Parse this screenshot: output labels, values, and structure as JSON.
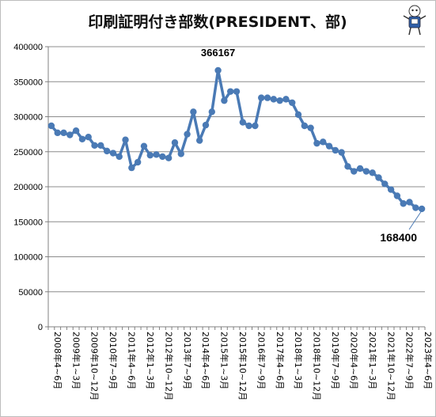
{
  "chart_data": {
    "type": "line",
    "title": "印刷証明付き部数(PRESIDENT、部)",
    "xlabel": "",
    "ylabel": "",
    "ylim": [
      0,
      400000
    ],
    "yticks": [
      0,
      50000,
      100000,
      150000,
      200000,
      250000,
      300000,
      350000,
      400000
    ],
    "grid": true,
    "legend": "none",
    "line_color": "#4a7ab5",
    "x_tick_labels": [
      "2008年4~6月",
      "2009年1~3月",
      "2009年10~12月",
      "2010年7~9月",
      "2011年4~6月",
      "2012年1~3月",
      "2012年10~12月",
      "2013年7~9月",
      "2014年4~6月",
      "2015年1~3月",
      "2015年10~12月",
      "2016年7~9月",
      "2017年4~6月",
      "2018年1~3月",
      "2018年10~12月",
      "2019年7~9月",
      "2020年4~6月",
      "2021年1~3月",
      "2021年10~12月",
      "2022年7~9月",
      "2023年4~6月"
    ],
    "series": [
      {
        "values": [
          287000,
          277000,
          277000,
          274000,
          280000,
          268000,
          271000,
          259000,
          259000,
          251000,
          248000,
          243000,
          267000,
          227000,
          235000,
          258000,
          245000,
          246000,
          243000,
          241000,
          263000,
          247000,
          275000,
          307000,
          266000,
          288000,
          307000,
          366167,
          323000,
          336000,
          336000,
          292000,
          287000,
          287000,
          327000,
          327000,
          325000,
          323000,
          325000,
          320000,
          303000,
          287000,
          284000,
          262000,
          264000,
          258000,
          252000,
          249000,
          229000,
          222000,
          226000,
          222000,
          220000,
          213000,
          204000,
          196000,
          187000,
          176000,
          178000,
          170000,
          168400
        ]
      }
    ],
    "annotations": [
      {
        "label": "366167",
        "value": 366167
      },
      {
        "label": "168400",
        "value": 168400
      }
    ]
  }
}
